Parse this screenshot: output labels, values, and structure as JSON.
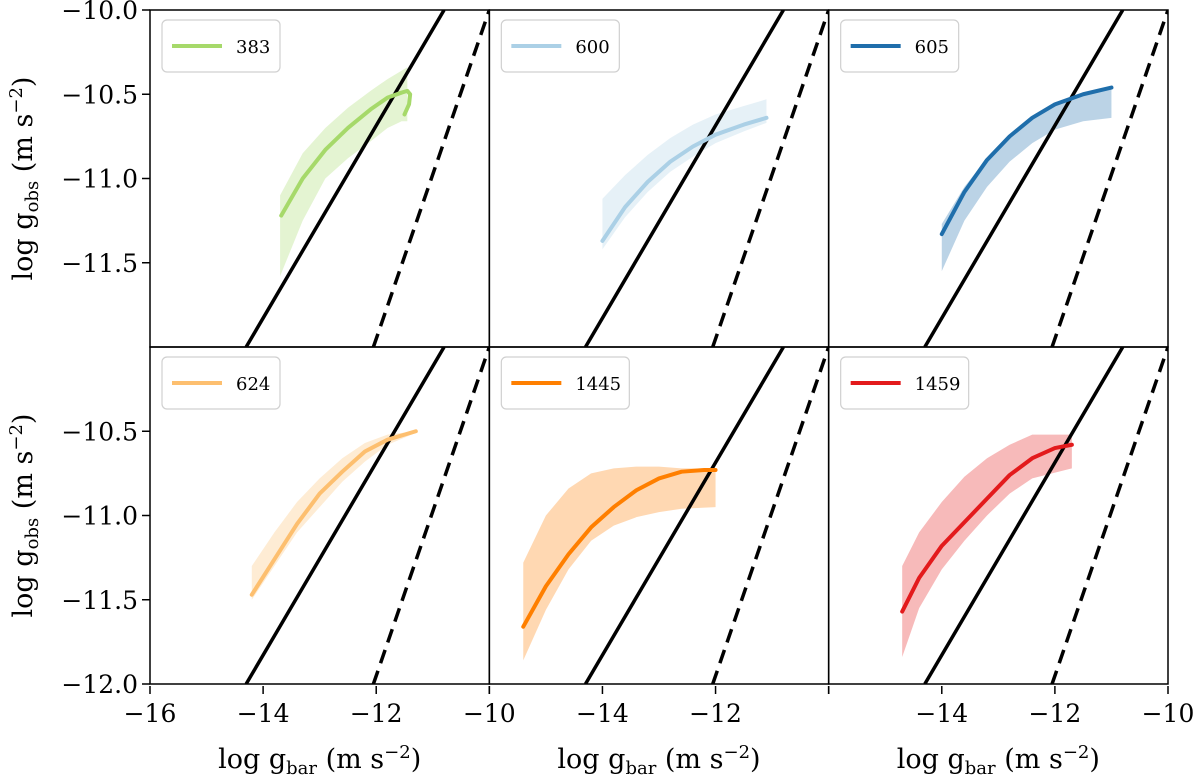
{
  "chart_data": {
    "type": "line",
    "grid": false,
    "shared_axes": {
      "xlim": [
        -16,
        -10
      ],
      "ylim": [
        -12,
        -10
      ],
      "x_ticks": [
        -16,
        -14,
        -12,
        -10
      ],
      "x_tick_labels": [
        "−16",
        "−14",
        "−12",
        "−10"
      ],
      "y_ticks_top": [
        -10.0,
        -10.5,
        -11.0,
        -11.5
      ],
      "y_tick_labels_top": [
        "−10.0",
        "−10.5",
        "−11.0",
        "−11.5"
      ],
      "y_ticks_bottom": [
        -10.5,
        -11.0,
        -11.5,
        -12.0
      ],
      "y_tick_labels_bottom": [
        "−10.5",
        "−11.0",
        "−11.5",
        "−12.0"
      ],
      "xlabel_prefix": "log g",
      "xlabel_sub": "bar",
      "xlabel_units": "(m s",
      "xlabel_exp": "−2",
      "ylabel_prefix": "log g",
      "ylabel_sub": "obs",
      "ylabel_units": "(m s",
      "ylabel_exp": "−2",
      "reference_lines": [
        {
          "name": "solid",
          "style": "solid",
          "x": [
            -14.3,
            -10.8
          ],
          "y": [
            -12.0,
            -10.0
          ]
        },
        {
          "name": "dashed",
          "style": "dashed",
          "x": [
            -12.05,
            -10.0
          ],
          "y": [
            -12.0,
            -10.0
          ]
        }
      ]
    },
    "panels": [
      {
        "label": "383",
        "color": "#a6d96a",
        "x": [
          -13.68,
          -13.3,
          -12.9,
          -12.5,
          -12.1,
          -11.8,
          -11.55,
          -11.45,
          -11.4,
          -11.42,
          -11.5
        ],
        "y": [
          -11.22,
          -11.0,
          -10.83,
          -10.7,
          -10.59,
          -10.52,
          -10.49,
          -10.48,
          -10.5,
          -10.56,
          -10.62
        ],
        "band_upper": [
          -11.1,
          -10.85,
          -10.7,
          -10.58,
          -10.48,
          -10.41,
          -10.36,
          -10.34
        ],
        "band_lower": [
          -11.58,
          -11.25,
          -11.0,
          -10.88,
          -10.78,
          -10.7,
          -10.66,
          -10.66
        ],
        "band_x": [
          -13.7,
          -13.3,
          -12.9,
          -12.5,
          -12.1,
          -11.8,
          -11.55,
          -11.45
        ]
      },
      {
        "label": "600",
        "color": "#abd0e6",
        "x": [
          -14.0,
          -13.6,
          -13.2,
          -12.8,
          -12.4,
          -12.0,
          -11.5,
          -11.1
        ],
        "y": [
          -11.37,
          -11.17,
          -11.02,
          -10.9,
          -10.81,
          -10.74,
          -10.68,
          -10.64
        ],
        "band_upper": [
          -11.12,
          -10.98,
          -10.86,
          -10.76,
          -10.68,
          -10.62,
          -10.57,
          -10.53
        ],
        "band_lower": [
          -11.42,
          -11.23,
          -11.08,
          -10.96,
          -10.87,
          -10.79,
          -10.72,
          -10.67
        ],
        "band_x": [
          -14.0,
          -13.6,
          -13.2,
          -12.8,
          -12.4,
          -12.0,
          -11.5,
          -11.1
        ]
      },
      {
        "label": "605",
        "color": "#1f6eab",
        "x": [
          -14.0,
          -13.6,
          -13.2,
          -12.8,
          -12.4,
          -12.0,
          -11.5,
          -11.0
        ],
        "y": [
          -11.33,
          -11.08,
          -10.89,
          -10.75,
          -10.64,
          -10.56,
          -10.5,
          -10.46
        ],
        "band_upper": [
          -11.27,
          -11.05,
          -10.88,
          -10.74,
          -10.63,
          -10.55,
          -10.49,
          -10.45
        ],
        "band_lower": [
          -11.55,
          -11.25,
          -11.05,
          -10.9,
          -10.79,
          -10.71,
          -10.66,
          -10.64
        ],
        "band_x": [
          -14.0,
          -13.6,
          -13.2,
          -12.8,
          -12.4,
          -12.0,
          -11.5,
          -11.0
        ]
      },
      {
        "label": "624",
        "color": "#fdbf6f",
        "x": [
          -14.2,
          -13.8,
          -13.4,
          -13.0,
          -12.6,
          -12.2,
          -11.8,
          -11.3
        ],
        "y": [
          -11.47,
          -11.26,
          -11.05,
          -10.87,
          -10.74,
          -10.62,
          -10.55,
          -10.5
        ],
        "band_upper": [
          -11.3,
          -11.1,
          -10.92,
          -10.78,
          -10.66,
          -10.57,
          -10.52,
          -10.5
        ],
        "band_lower": [
          -11.5,
          -11.3,
          -11.1,
          -10.95,
          -10.8,
          -10.68,
          -10.58,
          -10.51
        ],
        "band_x": [
          -14.2,
          -13.8,
          -13.4,
          -13.0,
          -12.6,
          -12.2,
          -11.8,
          -11.3
        ]
      },
      {
        "label": "1445",
        "color": "#ff7f00",
        "x": [
          -15.4,
          -15.0,
          -14.6,
          -14.2,
          -13.8,
          -13.4,
          -13.0,
          -12.6,
          -12.2,
          -12.0
        ],
        "y": [
          -11.66,
          -11.42,
          -11.23,
          -11.07,
          -10.95,
          -10.85,
          -10.78,
          -10.74,
          -10.73,
          -10.73
        ],
        "band_upper": [
          -11.28,
          -11.0,
          -10.84,
          -10.75,
          -10.72,
          -10.71,
          -10.71,
          -10.72,
          -10.72
        ],
        "band_lower": [
          -11.86,
          -11.56,
          -11.32,
          -11.15,
          -11.06,
          -11.01,
          -10.98,
          -10.96,
          -10.95
        ],
        "band_x": [
          -15.4,
          -15.0,
          -14.6,
          -14.2,
          -13.8,
          -13.4,
          -13.0,
          -12.6,
          -12.0
        ]
      },
      {
        "label": "1459",
        "color": "#e31a1c",
        "x": [
          -14.7,
          -14.4,
          -14.0,
          -13.6,
          -13.2,
          -12.8,
          -12.4,
          -12.0,
          -11.7
        ],
        "y": [
          -11.57,
          -11.37,
          -11.18,
          -11.04,
          -10.9,
          -10.76,
          -10.66,
          -10.6,
          -10.58
        ],
        "band_upper": [
          -11.3,
          -11.1,
          -10.92,
          -10.77,
          -10.66,
          -10.58,
          -10.52,
          -10.52
        ],
        "band_lower": [
          -11.84,
          -11.55,
          -11.32,
          -11.15,
          -11.0,
          -10.87,
          -10.78,
          -10.72
        ],
        "band_x": [
          -14.7,
          -14.4,
          -14.0,
          -13.6,
          -13.2,
          -12.8,
          -12.4,
          -11.7
        ]
      }
    ]
  }
}
